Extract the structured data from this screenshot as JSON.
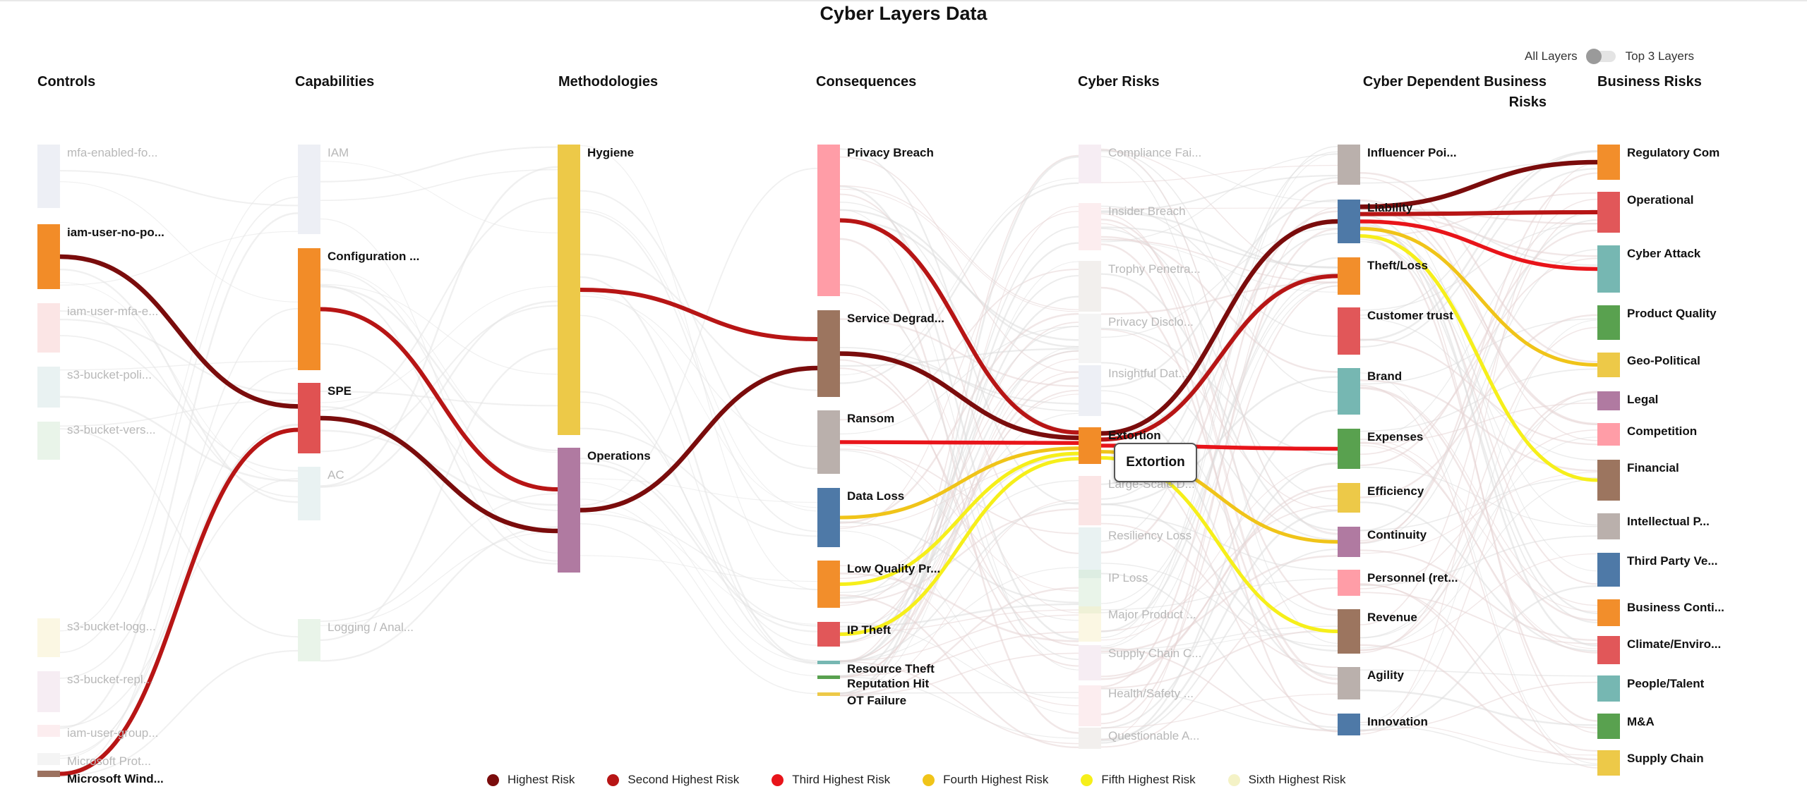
{
  "title": "Cyber Layers Data",
  "toggle": {
    "left_label": "All Layers",
    "right_label": "Top 3 Layers",
    "state": "All Layers"
  },
  "tooltip": "Extortion",
  "colors": {
    "highest": "#7a0c0c",
    "second": "#b71515",
    "third": "#e8141a",
    "fourth": "#f0c419",
    "fifth": "#f6ef1a",
    "sixth": "#f2f2c8",
    "faint": "#d9d9d9"
  },
  "legend": [
    {
      "label": "Highest Risk",
      "color": "#7a0c0c"
    },
    {
      "label": "Second Highest Risk",
      "color": "#b71515"
    },
    {
      "label": "Third Highest Risk",
      "color": "#e8141a"
    },
    {
      "label": "Fourth Highest Risk",
      "color": "#f0c419"
    },
    {
      "label": "Fifth Highest Risk",
      "color": "#f6ef1a"
    },
    {
      "label": "Sixth Highest Risk",
      "color": "#f4f2c6"
    }
  ],
  "chart_data": {
    "type": "sankey",
    "title": "Cyber Layers Data",
    "columns": [
      {
        "name": "Controls",
        "nodes": [
          {
            "label": "mfa-enabled-fo...",
            "color": "#d6dbe8",
            "highlighted": false
          },
          {
            "label": "iam-user-no-po...",
            "color": "#f28c28",
            "highlighted": true
          },
          {
            "label": "iam-user-mfa-e...",
            "color": "#f6c6c6",
            "highlighted": false
          },
          {
            "label": "s3-bucket-poli...",
            "color": "#cfe3e3",
            "highlighted": false
          },
          {
            "label": "s3-bucket-vers...",
            "color": "#cfe6cf",
            "highlighted": false
          },
          {
            "label": "s3-bucket-logg...",
            "color": "#f7edc2",
            "highlighted": false
          },
          {
            "label": "s3-bucket-repl...",
            "color": "#ead8e4",
            "highlighted": false
          },
          {
            "label": "iam-user-group...",
            "color": "#f9d6dc",
            "highlighted": false
          },
          {
            "label": "Microsoft Prot...",
            "color": "#e6e6e6",
            "highlighted": false
          },
          {
            "label": "Microsoft Wind...",
            "color": "#9c7260",
            "highlighted": true
          }
        ]
      },
      {
        "name": "Capabilities",
        "nodes": [
          {
            "label": "IAM",
            "color": "#d6dbe8",
            "highlighted": false
          },
          {
            "label": "Configuration ...",
            "color": "#f28c28",
            "highlighted": true
          },
          {
            "label": "SPE",
            "color": "#e05252",
            "highlighted": true
          },
          {
            "label": "AC",
            "color": "#cfe3e3",
            "highlighted": false
          },
          {
            "label": "Logging / Anal...",
            "color": "#cfe6cf",
            "highlighted": false
          }
        ]
      },
      {
        "name": "Methodologies",
        "nodes": [
          {
            "label": "Hygiene",
            "color": "#edc948",
            "highlighted": true
          },
          {
            "label": "Operations",
            "color": "#b07aa1",
            "highlighted": true
          }
        ]
      },
      {
        "name": "Consequences",
        "nodes": [
          {
            "label": "Privacy Breach",
            "color": "#ff9da7",
            "highlighted": true
          },
          {
            "label": "Service Degrad...",
            "color": "#9c755f",
            "highlighted": true
          },
          {
            "label": "Ransom",
            "color": "#bab0ac",
            "highlighted": true
          },
          {
            "label": "Data Loss",
            "color": "#4e79a7",
            "highlighted": true
          },
          {
            "label": "Low Quality Pr...",
            "color": "#f28e2b",
            "highlighted": true
          },
          {
            "label": "IP Theft",
            "color": "#e15759",
            "highlighted": true
          },
          {
            "label": "Resource Theft",
            "color": "#76b7b2",
            "highlighted": true
          },
          {
            "label": "Reputation Hit",
            "color": "#59a14f",
            "highlighted": true
          },
          {
            "label": "OT Failure",
            "color": "#edc948",
            "highlighted": true
          }
        ]
      },
      {
        "name": "Cyber Risks",
        "nodes": [
          {
            "label": "Compliance Fai...",
            "color": "#ead8e4",
            "highlighted": false
          },
          {
            "label": "Insider Breach",
            "color": "#f9d6dc",
            "highlighted": false
          },
          {
            "label": "Trophy Penetra...",
            "color": "#e3dcd6",
            "highlighted": false
          },
          {
            "label": "Privacy Disclo...",
            "color": "#e6e6e6",
            "highlighted": false
          },
          {
            "label": "Insightful Dat...",
            "color": "#d6dbe8",
            "highlighted": false
          },
          {
            "label": "Extortion",
            "color": "#f28c28",
            "highlighted": true
          },
          {
            "label": "Large-Scale D...",
            "color": "#f6c6c6",
            "highlighted": false
          },
          {
            "label": "Resiliency Loss",
            "color": "#cfe3e3",
            "highlighted": false
          },
          {
            "label": "IP Loss",
            "color": "#cfe6cf",
            "highlighted": false
          },
          {
            "label": "Major Product ...",
            "color": "#f7edc2",
            "highlighted": false
          },
          {
            "label": "Supply Chain C...",
            "color": "#ead8e4",
            "highlighted": false
          },
          {
            "label": "Health/Safety ...",
            "color": "#f9d6dc",
            "highlighted": false
          },
          {
            "label": "Questionable A...",
            "color": "#e3dcd6",
            "highlighted": false
          }
        ]
      },
      {
        "name": "Cyber Dependent Business Risks",
        "nodes": [
          {
            "label": "Influencer Poi...",
            "color": "#bab0ac",
            "highlighted": true
          },
          {
            "label": "Liability",
            "color": "#4e79a7",
            "highlighted": true
          },
          {
            "label": "Theft/Loss",
            "color": "#f28e2b",
            "highlighted": true
          },
          {
            "label": "Customer trust",
            "color": "#e15759",
            "highlighted": true
          },
          {
            "label": "Brand",
            "color": "#76b7b2",
            "highlighted": true
          },
          {
            "label": "Expenses",
            "color": "#59a14f",
            "highlighted": true
          },
          {
            "label": "Efficiency",
            "color": "#edc948",
            "highlighted": true
          },
          {
            "label": "Continuity",
            "color": "#b07aa1",
            "highlighted": true
          },
          {
            "label": "Personnel (ret...",
            "color": "#ff9da7",
            "highlighted": true
          },
          {
            "label": "Revenue",
            "color": "#9c755f",
            "highlighted": true
          },
          {
            "label": "Agility",
            "color": "#bab0ac",
            "highlighted": true
          },
          {
            "label": "Innovation",
            "color": "#4e79a7",
            "highlighted": true
          }
        ]
      },
      {
        "name": "Business Risks",
        "nodes": [
          {
            "label": "Regulatory Com",
            "color": "#f28e2b",
            "highlighted": true
          },
          {
            "label": "Operational",
            "color": "#e15759",
            "highlighted": true
          },
          {
            "label": "Cyber Attack",
            "color": "#76b7b2",
            "highlighted": true
          },
          {
            "label": "Product Quality",
            "color": "#59a14f",
            "highlighted": true
          },
          {
            "label": "Geo-Political",
            "color": "#edc948",
            "highlighted": true
          },
          {
            "label": "Legal",
            "color": "#b07aa1",
            "highlighted": true
          },
          {
            "label": "Competition",
            "color": "#ff9da7",
            "highlighted": true
          },
          {
            "label": "Financial",
            "color": "#9c755f",
            "highlighted": true
          },
          {
            "label": "Intellectual P...",
            "color": "#bab0ac",
            "highlighted": true
          },
          {
            "label": "Third Party Ve...",
            "color": "#4e79a7",
            "highlighted": true
          },
          {
            "label": "Business Conti...",
            "color": "#f28e2b",
            "highlighted": true
          },
          {
            "label": "Climate/Enviro...",
            "color": "#e15759",
            "highlighted": true
          },
          {
            "label": "People/Talent",
            "color": "#76b7b2",
            "highlighted": true
          },
          {
            "label": "M&A",
            "color": "#59a14f",
            "highlighted": true
          },
          {
            "label": "Supply Chain",
            "color": "#edc948",
            "highlighted": true
          }
        ]
      }
    ],
    "highlighted_links": [
      {
        "from": "iam-user-no-po...",
        "to": "SPE",
        "risk": "highest"
      },
      {
        "from": "Microsoft Wind...",
        "to": "SPE",
        "risk": "second"
      },
      {
        "from": "Configuration ...",
        "to": "Operations",
        "risk": "second"
      },
      {
        "from": "SPE",
        "to": "Operations",
        "risk": "highest"
      },
      {
        "from": "Hygiene",
        "to": "Service Degrad...",
        "risk": "second"
      },
      {
        "from": "Operations",
        "to": "Service Degrad...",
        "risk": "highest"
      },
      {
        "from": "Privacy Breach",
        "to": "Extortion",
        "risk": "second"
      },
      {
        "from": "Service Degrad...",
        "to": "Extortion",
        "risk": "highest"
      },
      {
        "from": "Ransom",
        "to": "Extortion",
        "risk": "third"
      },
      {
        "from": "Data Loss",
        "to": "Extortion",
        "risk": "fourth"
      },
      {
        "from": "Low Quality Pr...",
        "to": "Extortion",
        "risk": "fifth"
      },
      {
        "from": "IP Theft",
        "to": "Extortion",
        "risk": "fifth"
      },
      {
        "from": "Extortion",
        "to": "Liability",
        "risk": "highest"
      },
      {
        "from": "Extortion",
        "to": "Theft/Loss",
        "risk": "second"
      },
      {
        "from": "Extortion",
        "to": "Expenses",
        "risk": "third"
      },
      {
        "from": "Extortion",
        "to": "Continuity",
        "risk": "fourth"
      },
      {
        "from": "Extortion",
        "to": "Revenue",
        "risk": "fifth"
      },
      {
        "from": "Liability",
        "to": "Regulatory Com",
        "risk": "highest"
      },
      {
        "from": "Liability",
        "to": "Operational",
        "risk": "second"
      },
      {
        "from": "Liability",
        "to": "Cyber Attack",
        "risk": "third"
      },
      {
        "from": "Liability",
        "to": "Geo-Political",
        "risk": "fourth"
      },
      {
        "from": "Liability",
        "to": "Financial",
        "risk": "fifth"
      }
    ]
  }
}
